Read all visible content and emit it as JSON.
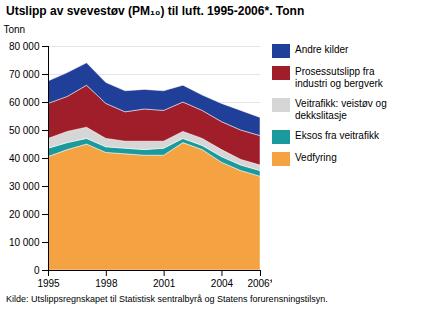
{
  "chart_data": {
    "type": "area",
    "stacked": true,
    "title": "Utslipp av svevestøv (PM₁₀) til luft. 1995-2006*. Tonn",
    "y_label": "Tonn",
    "source": "Kilde: Utslippsregnskapet til Statistisk sentralbyrå og Statens forurensningstilsyn.",
    "x": [
      1995,
      1996,
      1997,
      1998,
      1999,
      2000,
      2001,
      2002,
      2003,
      2004,
      2005,
      2006
    ],
    "xlim": [
      1995,
      2006
    ],
    "xticks": [
      1995,
      1998,
      2001,
      2004,
      {
        "value": 2006,
        "label": "2006*"
      }
    ],
    "ylim": [
      0,
      80000
    ],
    "yticks": [
      0,
      {
        "value": 10000,
        "label": "10 000"
      },
      {
        "value": 20000,
        "label": "20 000"
      },
      {
        "value": 30000,
        "label": "30 000"
      },
      {
        "value": 40000,
        "label": "40 000"
      },
      {
        "value": 50000,
        "label": "50 000"
      },
      {
        "value": 60000,
        "label": "60 000"
      },
      {
        "value": 70000,
        "label": "70 000"
      },
      {
        "value": 80000,
        "label": "80 000"
      }
    ],
    "grid": true,
    "legend": "right",
    "series": [
      {
        "name": "Vedfyring",
        "color": "#f5a243",
        "values": [
          40500,
          43000,
          45000,
          42000,
          41500,
          41000,
          41000,
          45500,
          43000,
          38500,
          35500,
          33500
        ]
      },
      {
        "name": "Eksos fra veitrafikk",
        "color": "#1a9a9c",
        "values": [
          3000,
          2500,
          2000,
          2000,
          2000,
          2000,
          2500,
          1500,
          1500,
          2000,
          2000,
          2000
        ]
      },
      {
        "name": "Veitrafikk: veistøv og dekkslitasje",
        "color": "#d6d6d6",
        "values": [
          3500,
          4000,
          4000,
          3000,
          2500,
          3000,
          2500,
          2500,
          2500,
          2500,
          2000,
          2000
        ]
      },
      {
        "name": "Prosessutslipp fra industri og bergverk",
        "color": "#a01d2a",
        "values": [
          12500,
          12500,
          15000,
          12500,
          10500,
          11500,
          11000,
          10500,
          10000,
          10000,
          10500,
          10500
        ]
      },
      {
        "name": "Andre kilder",
        "color": "#203f98",
        "values": [
          8000,
          8500,
          8000,
          7500,
          7500,
          7000,
          7000,
          6000,
          5500,
          6500,
          7000,
          6500
        ]
      }
    ]
  }
}
